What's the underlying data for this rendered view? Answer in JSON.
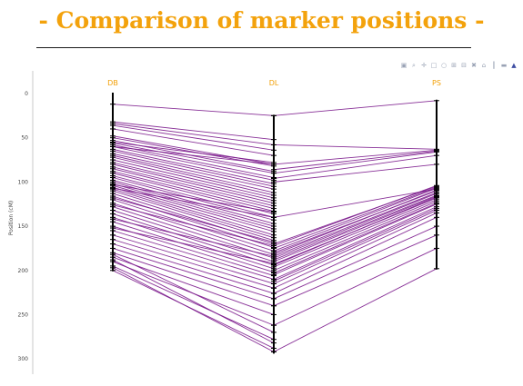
{
  "header": {
    "title": "- Comparison of marker positions -"
  },
  "modebar": {
    "icons": [
      "camera-icon",
      "zoom-icon",
      "pan-icon",
      "box-select-icon",
      "lasso-icon",
      "zoom-in-icon",
      "zoom-out-icon",
      "autoscale-icon",
      "reset-icon",
      "spike-lines-icon",
      "compare-hover-icon",
      "plotly-logo-icon"
    ],
    "glyphs": [
      "▣",
      "⌕",
      "✛",
      "□",
      "○",
      "⊞",
      "⊟",
      "✖",
      "⌂",
      "┃",
      "▬",
      "▲"
    ]
  },
  "chart_data": {
    "type": "line",
    "title": "",
    "ylabel": "Position (cM)",
    "ylim": [
      0,
      305
    ],
    "y_reversed": true,
    "yticks": [
      0,
      50,
      100,
      150,
      200,
      250,
      300
    ],
    "axes": [
      "DB",
      "DL",
      "PS"
    ],
    "line_color": "#7b1a8c",
    "axis_color": "#000000",
    "label_color": "#f29f05",
    "links_DB_DL": [
      [
        12,
        25
      ],
      [
        32,
        52
      ],
      [
        34,
        58
      ],
      [
        36,
        64
      ],
      [
        40,
        70
      ],
      [
        48,
        80
      ],
      [
        50,
        82
      ],
      [
        53,
        88
      ],
      [
        56,
        90
      ],
      [
        58,
        95
      ],
      [
        60,
        98
      ],
      [
        63,
        102
      ],
      [
        65,
        105
      ],
      [
        68,
        108
      ],
      [
        70,
        112
      ],
      [
        72,
        115
      ],
      [
        75,
        118
      ],
      [
        78,
        121
      ],
      [
        80,
        124
      ],
      [
        83,
        127
      ],
      [
        85,
        130
      ],
      [
        88,
        133
      ],
      [
        90,
        136
      ],
      [
        93,
        140
      ],
      [
        95,
        143
      ],
      [
        98,
        147
      ],
      [
        100,
        150
      ],
      [
        102,
        153
      ],
      [
        104,
        156
      ],
      [
        106,
        160
      ],
      [
        108,
        163
      ],
      [
        110,
        166
      ],
      [
        113,
        170
      ],
      [
        116,
        174
      ],
      [
        120,
        178
      ],
      [
        124,
        182
      ],
      [
        128,
        186
      ],
      [
        132,
        190
      ],
      [
        136,
        194
      ],
      [
        140,
        198
      ],
      [
        145,
        202
      ],
      [
        150,
        206
      ],
      [
        155,
        210
      ],
      [
        160,
        215
      ],
      [
        165,
        220
      ],
      [
        170,
        226
      ],
      [
        175,
        232
      ],
      [
        180,
        240
      ],
      [
        185,
        250
      ],
      [
        190,
        262
      ],
      [
        195,
        278
      ],
      [
        200,
        288
      ],
      [
        55,
        78
      ],
      [
        60,
        80
      ],
      [
        103,
        134
      ],
      [
        107,
        140
      ],
      [
        118,
        168
      ],
      [
        126,
        172
      ],
      [
        142,
        184
      ],
      [
        152,
        192
      ],
      [
        182,
        270
      ],
      [
        188,
        282
      ],
      [
        197,
        292
      ]
    ],
    "links_DL_PS": [
      [
        25,
        8
      ],
      [
        80,
        64
      ],
      [
        86,
        65
      ],
      [
        90,
        66
      ],
      [
        96,
        70
      ],
      [
        100,
        80
      ],
      [
        140,
        108
      ],
      [
        170,
        105
      ],
      [
        175,
        106
      ],
      [
        178,
        107
      ],
      [
        180,
        110
      ],
      [
        184,
        112
      ],
      [
        186,
        113
      ],
      [
        188,
        115
      ],
      [
        190,
        116
      ],
      [
        193,
        118
      ],
      [
        196,
        120
      ],
      [
        200,
        122
      ],
      [
        205,
        125
      ],
      [
        210,
        128
      ],
      [
        215,
        132
      ],
      [
        220,
        135
      ],
      [
        226,
        140
      ],
      [
        232,
        150
      ],
      [
        240,
        160
      ],
      [
        262,
        175
      ],
      [
        292,
        198
      ],
      [
        58,
        63
      ],
      [
        172,
        104
      ],
      [
        182,
        109
      ],
      [
        194,
        117
      ],
      [
        203,
        124
      ],
      [
        212,
        130
      ]
    ]
  }
}
